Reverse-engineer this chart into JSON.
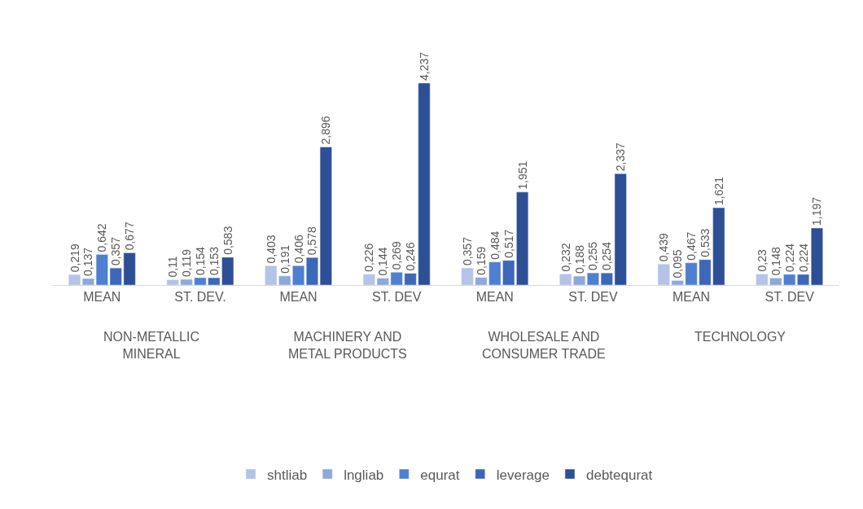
{
  "chart_data": {
    "type": "bar",
    "categories": [
      "MEAN",
      "ST. DEV.",
      "MEAN",
      "ST. DEV",
      "MEAN",
      "ST. DEV",
      "MEAN",
      "ST. DEV"
    ],
    "annotations": [
      "NON-METALLIC\nMINERAL",
      "MACHINERY AND\nMETAL PRODUCTS",
      "WHOLESALE AND\nCONSUMER TRADE",
      "TECHNOLOGY"
    ],
    "series": [
      {
        "name": "shtliab",
        "color": "#b4c3e6",
        "values": [
          0.219,
          0.11,
          0.403,
          0.226,
          0.357,
          0.232,
          0.439,
          0.23
        ],
        "value_labels": [
          "0,219",
          "0,11",
          "0,403",
          "0,226",
          "0,357",
          "0,232",
          "0,439",
          "0,23"
        ]
      },
      {
        "name": "lngliab",
        "color": "#8fa8db",
        "values": [
          0.137,
          0.119,
          0.191,
          0.144,
          0.159,
          0.188,
          0.095,
          0.148
        ],
        "value_labels": [
          "0,137",
          "0,119",
          "0,191",
          "0,144",
          "0,159",
          "0,188",
          "0,095",
          "0,148"
        ]
      },
      {
        "name": "equrat",
        "color": "#4f7fd1",
        "values": [
          0.642,
          0.154,
          0.406,
          0.269,
          0.484,
          0.255,
          0.467,
          0.224
        ],
        "value_labels": [
          "0,642",
          "0,154",
          "0,406",
          "0,269",
          "0,484",
          "0,255",
          "0,467",
          "0,224"
        ]
      },
      {
        "name": "leverage",
        "color": "#3d67b8",
        "values": [
          0.357,
          0.153,
          0.578,
          0.246,
          0.517,
          0.254,
          0.533,
          0.224
        ],
        "value_labels": [
          "0,357",
          "0,153",
          "0,578",
          "0,246",
          "0,517",
          "0,254",
          "0,533",
          "0,224"
        ]
      },
      {
        "name": "debtequrat",
        "color": "#2c4f96",
        "values": [
          0.677,
          0.583,
          2.896,
          4.237,
          1.951,
          2.337,
          1.621,
          1.197
        ],
        "value_labels": [
          "0,677",
          "0,583",
          "2,896",
          "4,237",
          "1,951",
          "2,337",
          "1,621",
          "1,197"
        ]
      }
    ],
    "legend": "bottom"
  }
}
